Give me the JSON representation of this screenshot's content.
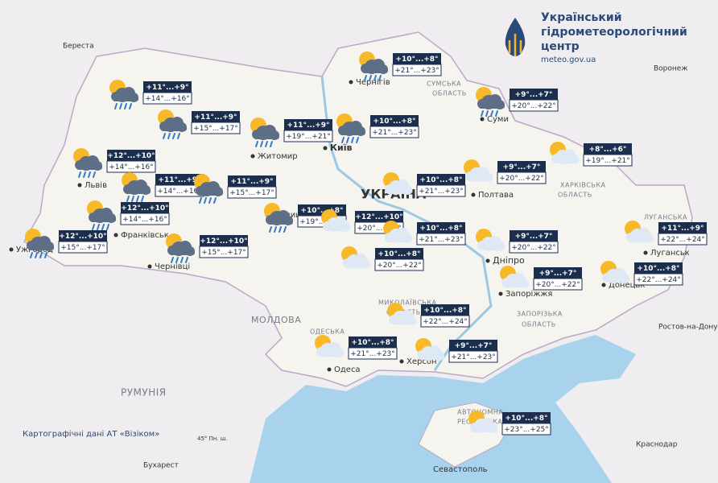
{
  "header": {
    "title_lines": [
      "Український",
      "гідрометеорологічний",
      "центр"
    ],
    "url": "meteo.gov.ua"
  },
  "places": [
    {
      "label": "Береста"
    },
    {
      "label": "Воронеж"
    },
    {
      "label": "Чернігів"
    },
    {
      "label": "СУМСЬКА"
    },
    {
      "label": "ОБЛАСТЬ"
    },
    {
      "label": "Суми"
    },
    {
      "label": "Житомир"
    },
    {
      "label": "Київ"
    },
    {
      "label": "УКРАЇНА"
    },
    {
      "label": "Полтава"
    },
    {
      "label": "ХАРКІВСЬКА"
    },
    {
      "label": "ОБЛАСТЬ"
    },
    {
      "label": "Львів"
    },
    {
      "label": "Вінниця"
    },
    {
      "label": "Франківськ"
    },
    {
      "label": "Ужгород"
    },
    {
      "label": "Чернівці"
    },
    {
      "label": "МОЛДОВА"
    },
    {
      "label": "РУМУНІЯ"
    },
    {
      "label": "Дніпро"
    },
    {
      "label": "Запоріжжя"
    },
    {
      "label": "ЗАПОРІЗЬКА"
    },
    {
      "label": "ОБЛАСТЬ"
    },
    {
      "label": "ЛУГАНСЬКА"
    },
    {
      "label": "Луганськ"
    },
    {
      "label": "Донецьк"
    },
    {
      "label": "Ростов-на-Дону"
    },
    {
      "label": "МИКОЛАЇВСЬКА"
    },
    {
      "label": "ОБЛАСТЬ"
    },
    {
      "label": "ОДЕСЬКА"
    },
    {
      "label": "Одеса"
    },
    {
      "label": "Херсон"
    },
    {
      "label": "Севастополь"
    },
    {
      "label": "Краснодар"
    },
    {
      "label": "Бухарест"
    },
    {
      "label": "45° Пн. ш."
    },
    {
      "label": "АВТОНОМНА"
    },
    {
      "label": "РЕСПУБЛІКА"
    }
  ],
  "forecasts": [
    {
      "night": "+11°...+9°",
      "day": "+14°...+16°",
      "icon": "rain"
    },
    {
      "night": "+11°...+9°",
      "day": "+15°...+17°",
      "icon": "rain"
    },
    {
      "night": "+11°...+9°",
      "day": "+19°...+21°",
      "icon": "rain"
    },
    {
      "night": "+10°...+8°",
      "day": "+21°...+23°",
      "icon": "rain"
    },
    {
      "night": "+10°...+8°",
      "day": "+21°...+23°",
      "icon": "rain"
    },
    {
      "night": "+9°...+7°",
      "day": "+20°...+22°",
      "icon": "rain"
    },
    {
      "night": "+8°...+6°",
      "day": "+19°...+21°",
      "icon": "cloud-sun"
    },
    {
      "night": "+12°...+10°",
      "day": "+14°...+16°",
      "icon": "rain"
    },
    {
      "night": "+11°...+9°",
      "day": "+14°...+16°",
      "icon": "rain"
    },
    {
      "night": "+11°...+9°",
      "day": "+15°...+17°",
      "icon": "rain"
    },
    {
      "night": "+12°...+10°",
      "day": "+14°...+16°",
      "icon": "rain"
    },
    {
      "night": "+12°...+10°",
      "day": "+15°...+17°",
      "icon": "rain"
    },
    {
      "night": "+12°...+10°",
      "day": "+15°...+17°",
      "icon": "rain"
    },
    {
      "night": "+10°...+8°",
      "day": "+19°...+21°",
      "icon": "rain"
    },
    {
      "night": "+12°...+10°",
      "day": "+20°...+22°",
      "icon": "cloud-sun"
    },
    {
      "night": "+10°...+8°",
      "day": "+21°...+23°",
      "icon": "cloud-sun"
    },
    {
      "night": "+9°...+7°",
      "day": "+20°...+22°",
      "icon": "cloud-sun"
    },
    {
      "night": "+10°...+8°",
      "day": "+21°...+23°",
      "icon": "cloud-sun"
    },
    {
      "night": "+10°...+8°",
      "day": "+20°...+22°",
      "icon": "cloud-sun"
    },
    {
      "night": "+9°...+7°",
      "day": "+20°...+22°",
      "icon": "cloud-sun"
    },
    {
      "night": "+11°...+9°",
      "day": "+22°...+24°",
      "icon": "cloud-sun"
    },
    {
      "night": "+9°...+7°",
      "day": "+20°...+22°",
      "icon": "cloud-sun"
    },
    {
      "night": "+10°...+8°",
      "day": "+22°...+24°",
      "icon": "cloud-sun"
    },
    {
      "night": "+10°...+8°",
      "day": "+22°...+24°",
      "icon": "cloud-sun"
    },
    {
      "night": "+10°...+8°",
      "day": "+21°...+23°",
      "icon": "cloud-sun"
    },
    {
      "night": "+9°...+7°",
      "day": "+21°...+23°",
      "icon": "cloud-sun"
    },
    {
      "night": "+10°...+8°",
      "day": "+23°...+25°",
      "icon": "cloud-sun"
    }
  ],
  "credit": "Картографічні дані АТ «Візіком»"
}
